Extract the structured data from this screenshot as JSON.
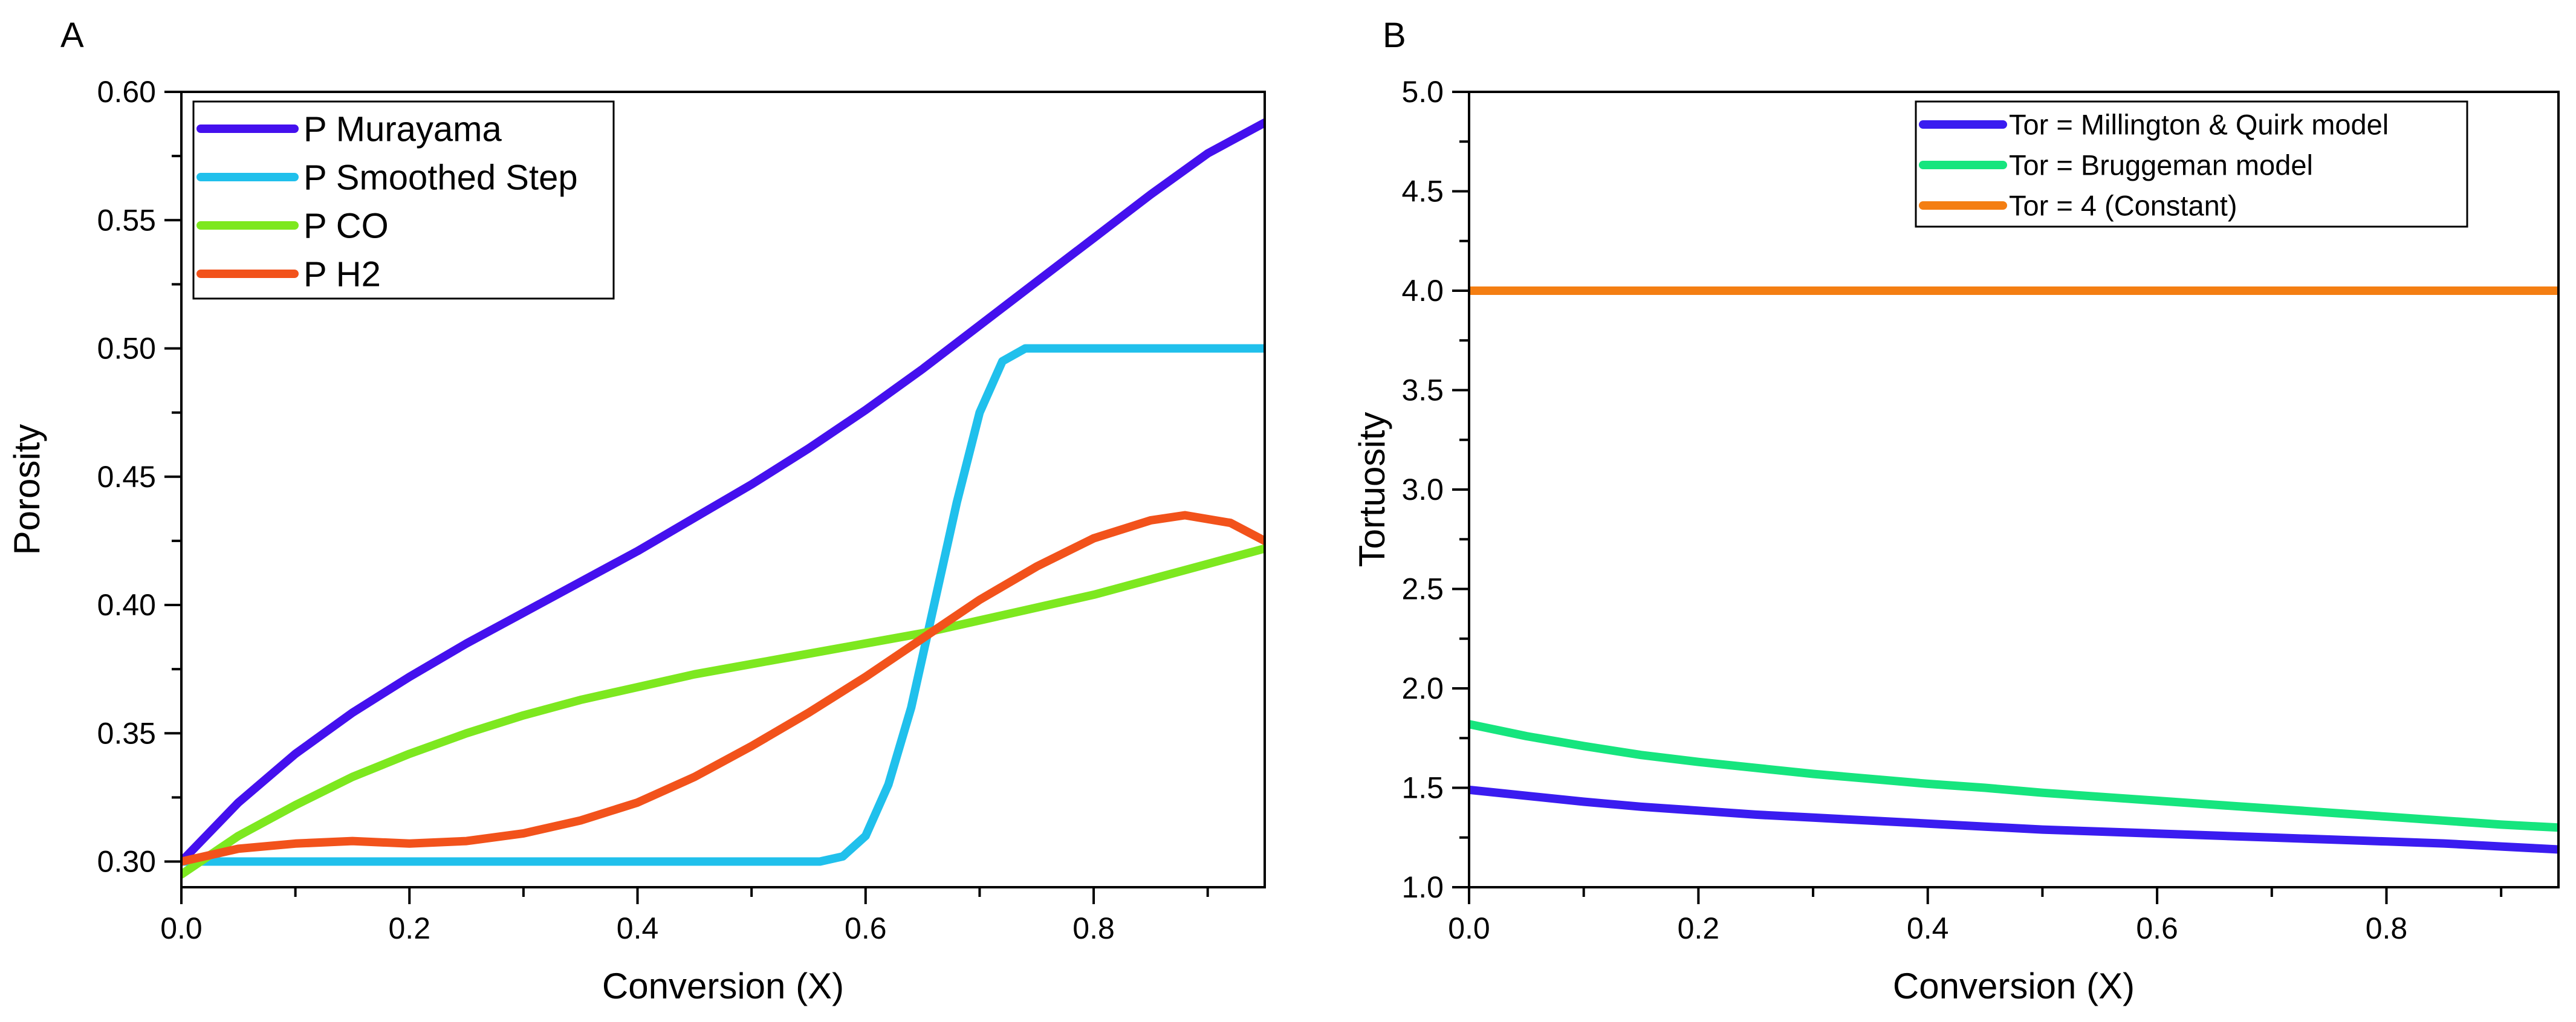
{
  "colors": {
    "murayama": "#4410ee",
    "smoothed_step": "#20c0ec",
    "co": "#7de81f",
    "h2": "#f2521b",
    "millington": "#3a1cf0",
    "bruggeman": "#16e57e",
    "constant": "#f47e12"
  },
  "chart_data": [
    {
      "type": "line",
      "panel_label": "A",
      "title": "",
      "xlabel": "Conversion (X)",
      "ylabel": "Porosity",
      "xlim": [
        0,
        0.95
      ],
      "ylim": [
        0.29,
        0.6
      ],
      "xticks": [
        0.0,
        0.2,
        0.4,
        0.6,
        0.8
      ],
      "xtick_labels": [
        "0.0",
        "0.2",
        "0.4",
        "0.6",
        "0.8"
      ],
      "yticks": [
        0.3,
        0.35,
        0.4,
        0.45,
        0.5,
        0.55,
        0.6
      ],
      "ytick_labels": [
        "0.30",
        "0.35",
        "0.40",
        "0.45",
        "0.50",
        "0.55",
        "0.60"
      ],
      "grid": false,
      "legend_position": "top-left",
      "series": [
        {
          "name": "P Murayama",
          "color_key": "murayama",
          "x": [
            0,
            0.05,
            0.1,
            0.15,
            0.2,
            0.25,
            0.3,
            0.35,
            0.4,
            0.45,
            0.5,
            0.55,
            0.6,
            0.65,
            0.7,
            0.75,
            0.8,
            0.85,
            0.9,
            0.95
          ],
          "y": [
            0.3,
            0.323,
            0.342,
            0.358,
            0.372,
            0.385,
            0.397,
            0.409,
            0.421,
            0.434,
            0.447,
            0.461,
            0.476,
            0.492,
            0.509,
            0.526,
            0.543,
            0.56,
            0.576,
            0.588
          ]
        },
        {
          "name": "P Smoothed Step",
          "color_key": "smoothed_step",
          "x": [
            0,
            0.1,
            0.2,
            0.3,
            0.4,
            0.5,
            0.56,
            0.58,
            0.6,
            0.62,
            0.64,
            0.66,
            0.68,
            0.7,
            0.72,
            0.74,
            0.76,
            0.8,
            0.85,
            0.9,
            0.95
          ],
          "y": [
            0.3,
            0.3,
            0.3,
            0.3,
            0.3,
            0.3,
            0.3,
            0.302,
            0.31,
            0.33,
            0.36,
            0.4,
            0.44,
            0.475,
            0.495,
            0.5,
            0.5,
            0.5,
            0.5,
            0.5,
            0.5
          ]
        },
        {
          "name": "P CO",
          "color_key": "co",
          "x": [
            0,
            0.05,
            0.1,
            0.15,
            0.2,
            0.25,
            0.3,
            0.35,
            0.4,
            0.45,
            0.5,
            0.55,
            0.6,
            0.65,
            0.7,
            0.75,
            0.8,
            0.85,
            0.9,
            0.95
          ],
          "y": [
            0.295,
            0.31,
            0.322,
            0.333,
            0.342,
            0.35,
            0.357,
            0.363,
            0.368,
            0.373,
            0.377,
            0.381,
            0.385,
            0.389,
            0.394,
            0.399,
            0.404,
            0.41,
            0.416,
            0.422
          ]
        },
        {
          "name": "P H2",
          "color_key": "h2",
          "x": [
            0,
            0.05,
            0.1,
            0.15,
            0.2,
            0.25,
            0.3,
            0.35,
            0.4,
            0.45,
            0.5,
            0.55,
            0.6,
            0.65,
            0.7,
            0.75,
            0.8,
            0.85,
            0.88,
            0.92,
            0.95
          ],
          "y": [
            0.3,
            0.305,
            0.307,
            0.308,
            0.307,
            0.308,
            0.311,
            0.316,
            0.323,
            0.333,
            0.345,
            0.358,
            0.372,
            0.387,
            0.402,
            0.415,
            0.426,
            0.433,
            0.435,
            0.432,
            0.425
          ]
        }
      ]
    },
    {
      "type": "line",
      "panel_label": "B",
      "title": "",
      "xlabel": "Conversion (X)",
      "ylabel": "Tortuosity",
      "xlim": [
        0,
        0.95
      ],
      "ylim": [
        1.0,
        5.0
      ],
      "xticks": [
        0.0,
        0.2,
        0.4,
        0.6,
        0.8
      ],
      "xtick_labels": [
        "0.0",
        "0.2",
        "0.4",
        "0.6",
        "0.8"
      ],
      "yticks": [
        1.0,
        1.5,
        2.0,
        2.5,
        3.0,
        3.5,
        4.0,
        4.5,
        5.0
      ],
      "ytick_labels": [
        "1.0",
        "1.5",
        "2.0",
        "2.5",
        "3.0",
        "3.5",
        "4.0",
        "4.5",
        "5.0"
      ],
      "grid": false,
      "legend_position": "top-right",
      "series": [
        {
          "name": "Tor = Millington & Quirk model",
          "color_key": "millington",
          "x": [
            0,
            0.05,
            0.1,
            0.15,
            0.2,
            0.25,
            0.3,
            0.35,
            0.4,
            0.45,
            0.5,
            0.55,
            0.6,
            0.65,
            0.7,
            0.75,
            0.8,
            0.85,
            0.9,
            0.95
          ],
          "y": [
            1.49,
            1.46,
            1.43,
            1.405,
            1.385,
            1.365,
            1.35,
            1.335,
            1.32,
            1.305,
            1.29,
            1.28,
            1.27,
            1.26,
            1.25,
            1.24,
            1.23,
            1.22,
            1.205,
            1.19
          ]
        },
        {
          "name": "Tor = Bruggeman model",
          "color_key": "bruggeman",
          "x": [
            0,
            0.05,
            0.1,
            0.15,
            0.2,
            0.25,
            0.3,
            0.35,
            0.4,
            0.45,
            0.5,
            0.55,
            0.6,
            0.65,
            0.7,
            0.75,
            0.8,
            0.85,
            0.9,
            0.95
          ],
          "y": [
            1.82,
            1.76,
            1.71,
            1.665,
            1.63,
            1.6,
            1.57,
            1.545,
            1.52,
            1.5,
            1.475,
            1.455,
            1.435,
            1.415,
            1.395,
            1.375,
            1.355,
            1.335,
            1.315,
            1.3
          ]
        },
        {
          "name": "Tor = 4 (Constant)",
          "color_key": "constant",
          "x": [
            0,
            0.95
          ],
          "y": [
            4.0,
            4.0
          ]
        }
      ]
    }
  ]
}
